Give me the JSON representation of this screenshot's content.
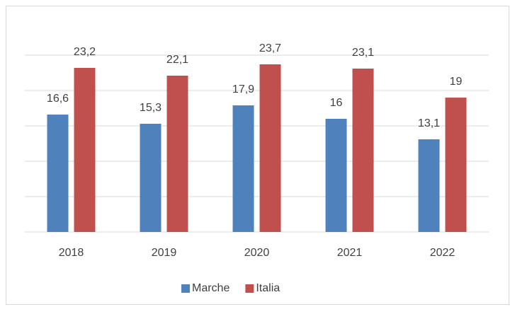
{
  "chart_data": {
    "type": "bar",
    "categories": [
      "2018",
      "2019",
      "2020",
      "2021",
      "2022"
    ],
    "series": [
      {
        "name": "Marche",
        "color": "#4f81bd",
        "values": [
          16.6,
          15.3,
          17.9,
          16,
          13.1
        ],
        "value_labels": [
          "16,6",
          "15,3",
          "17,9",
          "16",
          "13,1"
        ]
      },
      {
        "name": "Italia",
        "color": "#c0504d",
        "values": [
          23.2,
          22.1,
          23.7,
          23.1,
          19
        ],
        "value_labels": [
          "23,2",
          "22,1",
          "23,7",
          "23,1",
          "19"
        ]
      }
    ],
    "ylim": [
      0,
      25
    ],
    "yticks": [
      0,
      5,
      10,
      15,
      20,
      25
    ],
    "grid": true,
    "legend": "bottom"
  }
}
